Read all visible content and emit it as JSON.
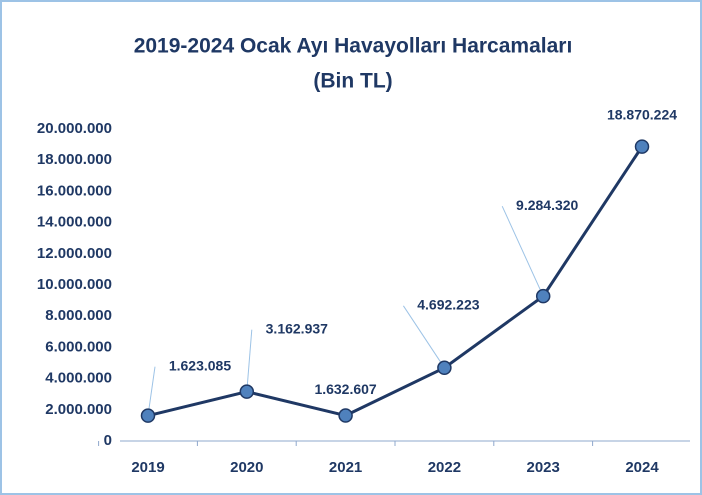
{
  "chart_data": {
    "type": "line",
    "title": "2019-2024 Ocak Ayı Havayolları Harcamaları",
    "subtitle": "(Bin TL)",
    "categories": [
      "2019",
      "2020",
      "2021",
      "2022",
      "2023",
      "2024"
    ],
    "series": [
      {
        "name": "Harcama",
        "color": "#1f3864",
        "marker_color": "#4f81bd",
        "values": [
          1623085,
          3162937,
          1632607,
          4692223,
          9284320,
          18870224
        ],
        "value_labels": [
          "1.623.085",
          "3.162.937",
          "1.632.607",
          "4.692.223",
          "9.284.320",
          "18.870.224"
        ]
      }
    ],
    "ylim": [
      0,
      20000000
    ],
    "yticks": [
      0,
      {
        "value": 2000000,
        "label": "2.000.000"
      },
      {
        "value": 4000000,
        "label": "4.000.000"
      },
      {
        "value": 6000000,
        "label": "6.000.000"
      },
      {
        "value": 8000000,
        "label": "8.000.000"
      },
      {
        "value": 10000000,
        "label": "10.000.000"
      },
      {
        "value": 12000000,
        "label": "12.000.000"
      },
      {
        "value": 14000000,
        "label": "14.000.000"
      },
      {
        "value": 16000000,
        "label": "16.000.000"
      },
      {
        "value": 18000000,
        "label": "18.000.000"
      },
      {
        "value": 20000000,
        "label": "20.000.000"
      }
    ],
    "grid": false
  }
}
